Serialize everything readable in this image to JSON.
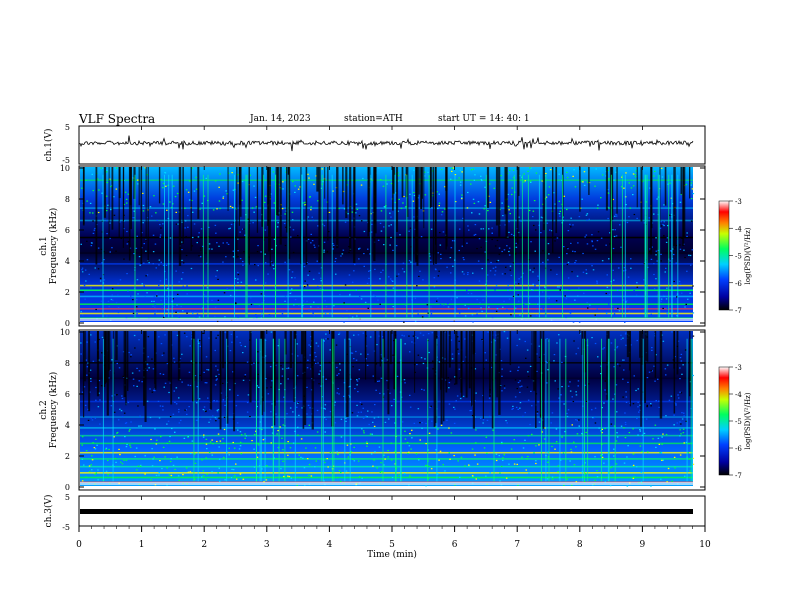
{
  "header": {
    "title": "VLF  Spectra",
    "date": "Jan. 14, 2023",
    "station": "station=ATH",
    "start": "start  UT  =   14: 40: 1"
  },
  "chart_data": [
    {
      "type": "line",
      "ylabel": "ch.1(V)",
      "ylim": [
        -5,
        5
      ],
      "yticks": [
        "5",
        "-5"
      ],
      "xlim": [
        0,
        10
      ],
      "description_series_level": 0,
      "series": [
        {
          "values": []
        }
      ]
    },
    {
      "type": "heatmap",
      "ylabel": "ch.1\nFrequency  (kHz)",
      "ylabel_lines": [
        "ch.1",
        "Frequency  (kHz)"
      ],
      "ylim": [
        0,
        10
      ],
      "yticks": [
        "0",
        "2",
        "4",
        "6",
        "8",
        "10"
      ],
      "xlim": [
        0,
        10
      ],
      "colorbar": {
        "label": "log(PSD)(V²/Hz)",
        "ticks": [
          "-3",
          "-4",
          "-5",
          "-6",
          "-7"
        ],
        "range": [
          -7,
          -3
        ]
      }
    },
    {
      "type": "heatmap",
      "ylabel_lines": [
        "ch.2",
        "Frequency  (kHz)"
      ],
      "ylim": [
        0,
        10
      ],
      "yticks": [
        "0",
        "2",
        "4",
        "6",
        "8",
        "10"
      ],
      "xlim": [
        0,
        10
      ],
      "colorbar": {
        "label": "log(PSD)(V²/Hz)",
        "ticks": [
          "-3",
          "-4",
          "-5",
          "-6",
          "-7"
        ],
        "range": [
          -7,
          -3
        ]
      }
    },
    {
      "type": "line",
      "ylabel": "ch.3(V)",
      "ylim": [
        -5,
        5
      ],
      "yticks": [
        "5",
        "-5"
      ],
      "xlim": [
        0,
        10
      ],
      "series": [
        {
          "values": []
        }
      ]
    }
  ],
  "xaxis": {
    "label": "Time  (min)",
    "ticks": [
      "0",
      "1",
      "2",
      "3",
      "4",
      "5",
      "6",
      "7",
      "8",
      "9",
      "10"
    ]
  },
  "colors": {
    "black": "#000000",
    "blue": "#0000cc",
    "cyan": "#00d8ff",
    "green": "#00ff40",
    "yellow": "#ffff00",
    "red": "#ff0000"
  }
}
